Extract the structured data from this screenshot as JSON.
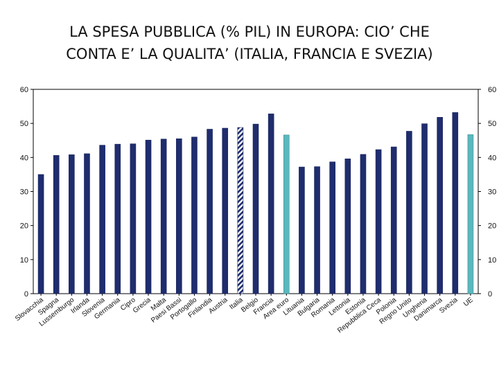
{
  "slide": {
    "title_line1": "LA SPESA PUBBLICA (% PIL) IN EUROPA: CIO’ CHE",
    "title_line2": "CONTA E’ LA QUALITA’ (ITALIA, FRANCIA E SVEZIA)"
  },
  "colors": {
    "bar": "#1f2d6e",
    "aggregate": "#5bb8be",
    "highlight": "#1f2d6e",
    "axis": "#000000"
  },
  "chart_data": {
    "type": "bar",
    "categories": [
      "Slovacchia",
      "Spagna",
      "Lussemburgo",
      "Irlanda",
      "Slovenia",
      "Germania",
      "Cipro",
      "Grecia",
      "Malta",
      "Paesi Bassi",
      "Portogallo",
      "Finlandia",
      "Austria",
      "Italia",
      "Belgio",
      "Francia",
      "Area euro",
      "Lituania",
      "Bulgaria",
      "Romania",
      "Lettonia",
      "Estonia",
      "Repubblica Ceca",
      "Polonia",
      "Regno Unito",
      "Ungheria",
      "Danimarca",
      "Svezia",
      "UE"
    ],
    "values": [
      35.0,
      40.6,
      40.8,
      41.1,
      43.6,
      43.9,
      44.0,
      45.1,
      45.4,
      45.5,
      46.0,
      48.3,
      48.6,
      48.8,
      49.8,
      52.8,
      46.6,
      37.2,
      37.3,
      38.7,
      39.6,
      40.9,
      42.3,
      43.1,
      47.7,
      49.9,
      51.8,
      53.2,
      46.7
    ],
    "bar_styles": [
      "normal",
      "normal",
      "normal",
      "normal",
      "normal",
      "normal",
      "normal",
      "normal",
      "normal",
      "normal",
      "normal",
      "normal",
      "normal",
      "hatched",
      "normal",
      "normal",
      "aggregate",
      "normal",
      "normal",
      "normal",
      "normal",
      "normal",
      "normal",
      "normal",
      "normal",
      "normal",
      "normal",
      "normal",
      "aggregate"
    ],
    "ylim": [
      0,
      60
    ],
    "y_ticks": [
      0,
      10,
      20,
      30,
      40,
      50,
      60
    ],
    "y_axes": [
      "left",
      "right"
    ],
    "grid": false,
    "legend": "none",
    "xlabel": "",
    "ylabel": ""
  }
}
